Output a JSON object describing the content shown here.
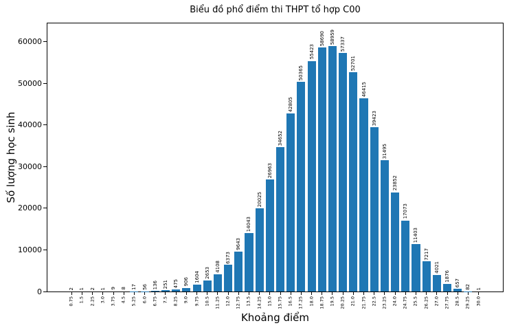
{
  "chart_data": {
    "type": "bar",
    "title": "Biểu đồ phổ điểm thi THPT tổ hợp C00",
    "xlabel": "Khoảng điểm",
    "ylabel": "Số lượng học sinh",
    "bar_color": "#1f77b4",
    "grid": false,
    "legend_position": "none",
    "value_labels_rotation": 90,
    "x_tick_rotation": 90,
    "ylim": [
      0,
      64600
    ],
    "yticks": [
      0,
      10000,
      20000,
      30000,
      40000,
      50000,
      60000
    ],
    "categories": [
      "0.75",
      "1.5",
      "2.25",
      "3.0",
      "3.75",
      "4.5",
      "5.25",
      "6.0",
      "6.75",
      "7.5",
      "8.25",
      "9.0",
      "9.75",
      "10.5",
      "11.25",
      "12.0",
      "12.75",
      "13.5",
      "14.25",
      "15.0",
      "15.75",
      "16.5",
      "17.25",
      "18.0",
      "18.75",
      "19.5",
      "20.25",
      "21.0",
      "21.75",
      "22.5",
      "23.25",
      "24.0",
      "24.75",
      "25.5",
      "26.25",
      "27.0",
      "27.75",
      "28.5",
      "29.25",
      "30.0"
    ],
    "values": [
      2,
      1,
      2,
      1,
      9,
      8,
      17,
      56,
      136,
      251,
      475,
      906,
      1604,
      2653,
      4108,
      6373,
      9643,
      14043,
      20025,
      26963,
      34652,
      42805,
      50365,
      55423,
      58690,
      58959,
      57337,
      52701,
      46415,
      39423,
      31495,
      23852,
      17073,
      11403,
      7217,
      4021,
      1876,
      657,
      82,
      1
    ]
  }
}
